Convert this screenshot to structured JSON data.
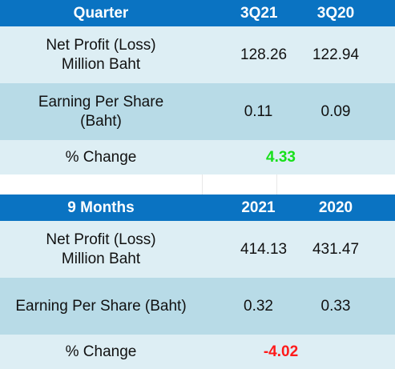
{
  "quarter_table": {
    "header": {
      "label": "Quarter",
      "col1": "3Q21",
      "col2": "3Q20"
    },
    "rows": [
      {
        "label_line1": "Net Profit (Loss)",
        "label_line2": "Million Baht",
        "v1": "128.26",
        "v2": "122.94"
      },
      {
        "label_line1": "Earning Per Share",
        "label_line2": "(Baht)",
        "v1": "0.11",
        "v2": "0.09"
      }
    ],
    "change": {
      "label": "% Change",
      "value": "4.33",
      "color": "#17e01a"
    }
  },
  "nine_month_table": {
    "header": {
      "label": "9 Months",
      "col1": "2021",
      "col2": "2020"
    },
    "rows": [
      {
        "label_line1": "Net Profit (Loss)",
        "label_line2": "Million Baht",
        "v1": "414.13",
        "v2": "431.47"
      },
      {
        "label_line1": "Earning Per Share (Baht)",
        "v1": "0.32",
        "v2": "0.33"
      }
    ],
    "change": {
      "label": "% Change",
      "value": "-4.02",
      "color": "#ff1a1a"
    }
  },
  "colors": {
    "header_bg": "#0a73c2",
    "row_light": "#ddeef4",
    "row_mid": "#b8dbe7"
  }
}
